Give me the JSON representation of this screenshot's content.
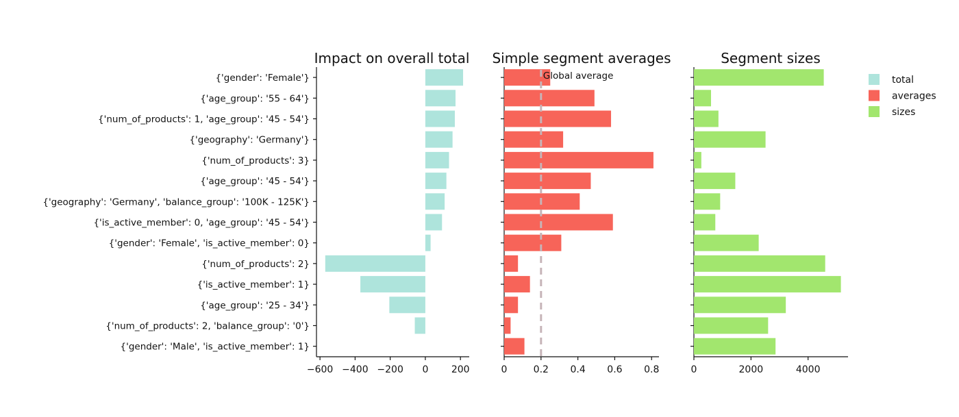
{
  "chart_data": {
    "type": "bar",
    "orientation": "horizontal",
    "categories": [
      "{'gender': 'Female'}",
      "{'age_group': '55 - 64'}",
      "{'num_of_products': 1, 'age_group': '45 - 54'}",
      "{'geography': 'Germany'}",
      "{'num_of_products': 3}",
      "{'age_group': '45 - 54'}",
      "{'geography': 'Germany', 'balance_group': '100K - 125K'}",
      "{'is_active_member': 0, 'age_group': '45 - 54'}",
      "{'gender': 'Female', 'is_active_member': 0}",
      "{'num_of_products': 2}",
      "{'is_active_member': 1}",
      "{'age_group': '25 - 34'}",
      "{'num_of_products': 2, 'balance_group': '0'}",
      "{'gender': 'Male', 'is_active_member': 1}"
    ],
    "panels": [
      {
        "title": "Impact on overall total",
        "series": "total",
        "xlim": [
          -620,
          250
        ],
        "ticks": [
          -600,
          -400,
          -200,
          0,
          200
        ],
        "tick_labels": [
          "−600",
          "−400",
          "−200",
          "0",
          "200"
        ],
        "values": [
          215,
          172,
          168,
          155,
          135,
          120,
          110,
          95,
          30,
          -570,
          -370,
          -205,
          -60,
          0
        ]
      },
      {
        "title": "Simple segment averages",
        "series": "averages",
        "xlim": [
          0,
          0.84
        ],
        "ticks": [
          0,
          0.2,
          0.4,
          0.6,
          0.8
        ],
        "tick_labels": [
          "0",
          "0.2",
          "0.4",
          "0.6",
          "0.8"
        ],
        "values": [
          0.25,
          0.49,
          0.58,
          0.32,
          0.81,
          0.47,
          0.41,
          0.59,
          0.31,
          0.075,
          0.14,
          0.075,
          0.035,
          0.11
        ],
        "reference_line": {
          "value": 0.2,
          "label": "Global average"
        }
      },
      {
        "title": "Segment sizes",
        "series": "sizes",
        "xlim": [
          0,
          5400
        ],
        "ticks": [
          0,
          2000,
          4000
        ],
        "tick_labels": [
          "0",
          "2000",
          "4000"
        ],
        "values": [
          4550,
          600,
          860,
          2510,
          260,
          1450,
          920,
          750,
          2270,
          4600,
          5150,
          3220,
          2600,
          2860
        ]
      }
    ],
    "legend": {
      "placement": "top-right",
      "items": [
        {
          "name": "total",
          "color": "#aee4dc"
        },
        {
          "name": "averages",
          "color": "#f76459"
        },
        {
          "name": "sizes",
          "color": "#a2e66e"
        }
      ]
    }
  }
}
